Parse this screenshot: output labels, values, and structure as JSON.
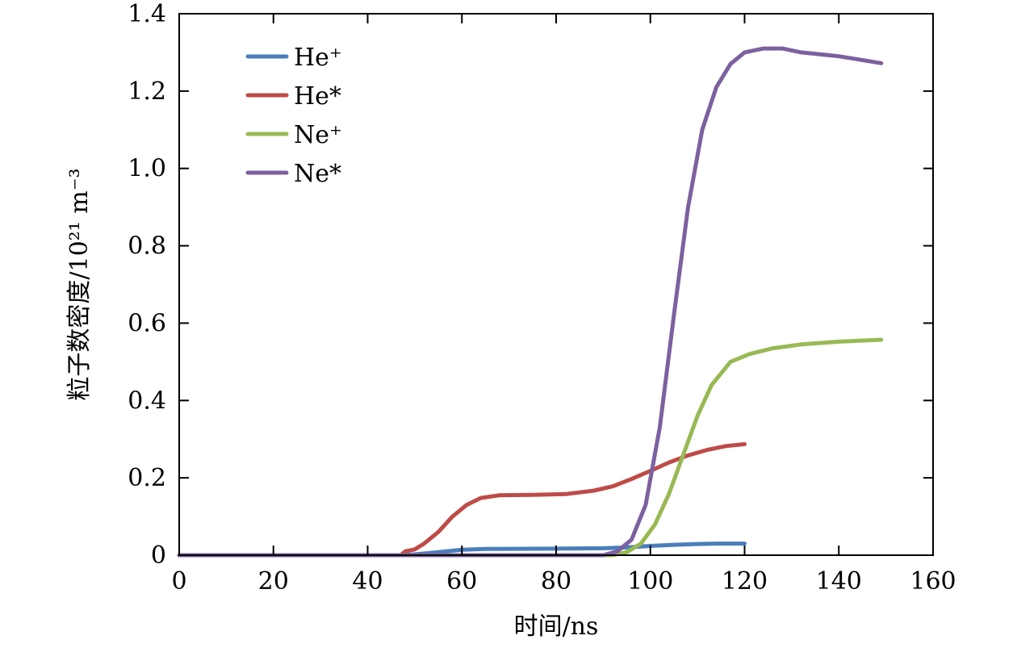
{
  "chart_data": {
    "type": "line",
    "xlabel": "时间/ns",
    "ylabel": "粒子数密度/10²¹ m⁻³",
    "xlim": [
      0,
      160
    ],
    "ylim": [
      0,
      1.4
    ],
    "x_ticks": [
      0,
      20,
      40,
      60,
      80,
      100,
      120,
      140,
      160
    ],
    "y_ticks": [
      0,
      0.2,
      0.4,
      0.6,
      0.8,
      1.0,
      1.2,
      1.4
    ],
    "x_tick_labels": [
      "0",
      "20",
      "40",
      "60",
      "80",
      "100",
      "120",
      "140",
      "160"
    ],
    "y_tick_labels": [
      "0",
      "0.2",
      "0.4",
      "0.6",
      "0.8",
      "1.0",
      "1.2",
      "1.4"
    ],
    "grid": false,
    "legend_position": "top-left",
    "series": [
      {
        "name": "He⁺",
        "color": "#4a7ebb",
        "points": [
          [
            0,
            0
          ],
          [
            47,
            0
          ],
          [
            50,
            0.002
          ],
          [
            55,
            0.008
          ],
          [
            60,
            0.014
          ],
          [
            65,
            0.016
          ],
          [
            80,
            0.017
          ],
          [
            90,
            0.018
          ],
          [
            95,
            0.02
          ],
          [
            100,
            0.024
          ],
          [
            105,
            0.027
          ],
          [
            110,
            0.029
          ],
          [
            115,
            0.03
          ],
          [
            120,
            0.03
          ]
        ]
      },
      {
        "name": "He*",
        "color": "#be4b48",
        "points": [
          [
            0,
            0
          ],
          [
            47,
            0
          ],
          [
            48,
            0.01
          ],
          [
            50,
            0.015
          ],
          [
            52,
            0.03
          ],
          [
            55,
            0.06
          ],
          [
            58,
            0.1
          ],
          [
            61,
            0.13
          ],
          [
            64,
            0.148
          ],
          [
            68,
            0.155
          ],
          [
            75,
            0.156
          ],
          [
            82,
            0.158
          ],
          [
            88,
            0.167
          ],
          [
            92,
            0.178
          ],
          [
            96,
            0.197
          ],
          [
            100,
            0.218
          ],
          [
            104,
            0.24
          ],
          [
            108,
            0.258
          ],
          [
            112,
            0.272
          ],
          [
            116,
            0.282
          ],
          [
            120,
            0.287
          ]
        ]
      },
      {
        "name": "Ne⁺",
        "color": "#98b954",
        "points": [
          [
            0,
            0
          ],
          [
            92,
            0
          ],
          [
            95,
            0.008
          ],
          [
            98,
            0.03
          ],
          [
            101,
            0.08
          ],
          [
            104,
            0.16
          ],
          [
            107,
            0.26
          ],
          [
            110,
            0.36
          ],
          [
            113,
            0.44
          ],
          [
            117,
            0.5
          ],
          [
            121,
            0.52
          ],
          [
            126,
            0.535
          ],
          [
            132,
            0.545
          ],
          [
            140,
            0.552
          ],
          [
            149,
            0.557
          ]
        ]
      },
      {
        "name": "Ne*",
        "color": "#7d60a0",
        "points": [
          [
            0,
            0
          ],
          [
            90,
            0
          ],
          [
            93,
            0.01
          ],
          [
            96,
            0.04
          ],
          [
            99,
            0.13
          ],
          [
            102,
            0.33
          ],
          [
            105,
            0.62
          ],
          [
            108,
            0.9
          ],
          [
            111,
            1.1
          ],
          [
            114,
            1.21
          ],
          [
            117,
            1.27
          ],
          [
            120,
            1.3
          ],
          [
            124,
            1.31
          ],
          [
            128,
            1.31
          ],
          [
            132,
            1.3
          ],
          [
            140,
            1.29
          ],
          [
            149,
            1.272
          ]
        ]
      }
    ]
  }
}
